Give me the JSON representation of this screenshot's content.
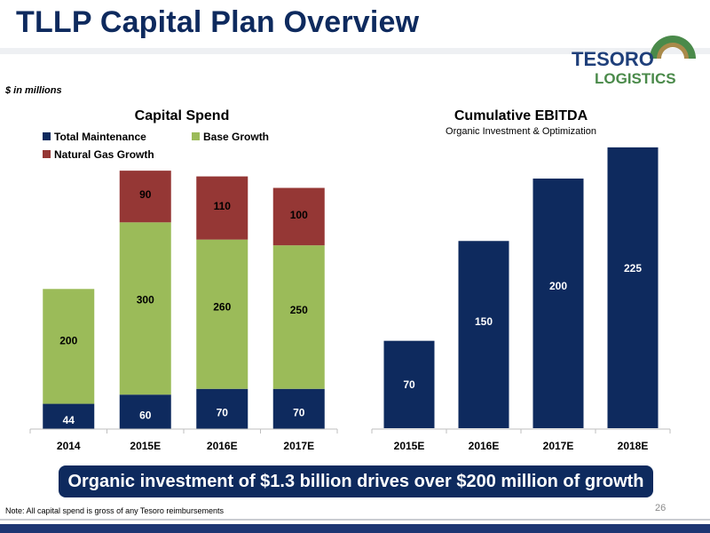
{
  "slide": {
    "title": "TLLP Capital Plan Overview",
    "units_note": "$ in millions",
    "callout": "Organic investment of $1.3 billion drives over $200 million of growth",
    "footnote": "Note: All capital spend is gross of any Tesoro reimbursements",
    "page_number": "26"
  },
  "logo": {
    "line1": "TESORO",
    "line2": "LOGISTICS"
  },
  "colors": {
    "navy": "#0e2a5e",
    "green": "#9bbb59",
    "red": "#953735",
    "logo_blue": "#1f3f7a",
    "logo_green": "#4a8a4a",
    "logo_tan": "#a98a4a"
  },
  "chart_data": [
    {
      "type": "bar",
      "stacked": true,
      "title": "Capital Spend",
      "subtitle": "",
      "categories": [
        "2014",
        "2015E",
        "2016E",
        "2017E"
      ],
      "series": [
        {
          "name": "Total Maintenance",
          "values": [
            44,
            60,
            70,
            70
          ],
          "color": "#0e2a5e"
        },
        {
          "name": "Base Growth",
          "values": [
            200,
            300,
            260,
            250
          ],
          "color": "#9bbb59"
        },
        {
          "name": "Natural Gas Growth",
          "values": [
            0,
            90,
            110,
            100
          ],
          "color": "#953735"
        }
      ],
      "legend": "top-left",
      "grid": false
    },
    {
      "type": "bar",
      "title": "Cumulative EBITDA",
      "subtitle": "Organic Investment & Optimization",
      "categories": [
        "2015E",
        "2016E",
        "2017E",
        "2018E"
      ],
      "values": [
        70,
        150,
        200,
        225
      ],
      "color": "#0e2a5e",
      "grid": false
    }
  ]
}
